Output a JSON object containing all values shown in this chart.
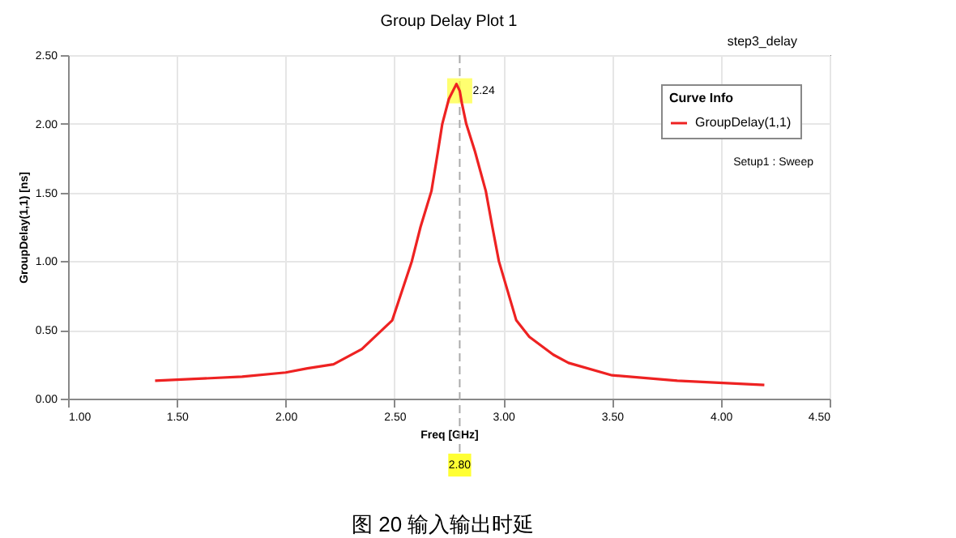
{
  "chart_data": {
    "type": "line",
    "title": "Group Delay Plot 1",
    "xlabel": "Freq [GHz]",
    "ylabel": "GroupDelay(1,1) [ns]",
    "legend_title": "Curve Info",
    "x": [
      1.4,
      1.8,
      2.0,
      2.1,
      2.22,
      2.35,
      2.49,
      2.58,
      2.62,
      2.67,
      2.7,
      2.72,
      2.75,
      2.785,
      2.8,
      2.81,
      2.83,
      2.87,
      2.92,
      2.95,
      2.98,
      3.06,
      3.12,
      3.23,
      3.3,
      3.5,
      3.8,
      4.2
    ],
    "series": [
      {
        "name": "GroupDelay(1,1)",
        "color": "#ee2222",
        "values": [
          0.13,
          0.16,
          0.19,
          0.22,
          0.25,
          0.36,
          0.57,
          1.0,
          1.25,
          1.51,
          1.8,
          2.0,
          2.18,
          2.29,
          2.24,
          2.15,
          2.0,
          1.8,
          1.51,
          1.25,
          1.0,
          0.57,
          0.45,
          0.32,
          0.26,
          0.17,
          0.13,
          0.1
        ]
      }
    ],
    "xlim": [
      1.0,
      4.5
    ],
    "xticks": [
      {
        "value": 1.0,
        "label": "1.00"
      },
      {
        "value": 1.5,
        "label": "1.50"
      },
      {
        "value": 2.0,
        "label": "2.00"
      },
      {
        "value": 2.5,
        "label": "2.50"
      },
      {
        "value": 3.0,
        "label": "3.00"
      },
      {
        "value": 3.5,
        "label": "3.50"
      },
      {
        "value": 4.0,
        "label": "4.00"
      },
      {
        "value": 4.5,
        "label": "4.50"
      }
    ],
    "ylim": [
      0.0,
      2.5
    ],
    "yticks": [
      {
        "value": 0.0,
        "label": "0.00"
      },
      {
        "value": 0.5,
        "label": "0.50"
      },
      {
        "value": 1.0,
        "label": "1.00"
      },
      {
        "value": 1.5,
        "label": "1.50"
      },
      {
        "value": 2.0,
        "label": "2.00"
      },
      {
        "value": 2.5,
        "label": "2.50"
      }
    ],
    "ref_lines": [
      {
        "axis": "x",
        "value": 2.8,
        "label": "2.80",
        "color": "#aaaaaa",
        "line_style": "dashed"
      }
    ],
    "annotations": [
      {
        "text": "2.24",
        "x": 2.8,
        "y": 2.24
      },
      "step3_delay",
      "Setup1 : Sweep",
      "图 20 输入输出时延"
    ],
    "grid": true,
    "legend": "top right",
    "line_style": "solid",
    "marker": "none"
  }
}
